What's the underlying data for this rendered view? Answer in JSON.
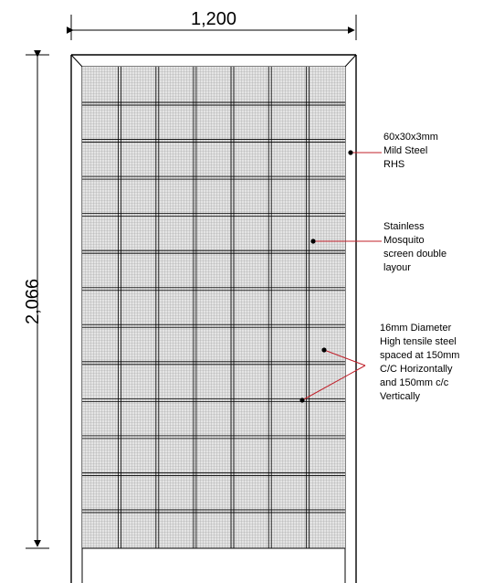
{
  "dimensions": {
    "width_label": "1,200",
    "height_label": "2,066"
  },
  "callouts": {
    "frame": [
      "60x30x3mm",
      "Mild Steel",
      "RHS"
    ],
    "mesh": [
      "Stainless",
      "Mosquito",
      "screen double",
      "layour"
    ],
    "bars": [
      "16mm Diameter",
      "High tensile steel",
      "spaced at 150mm",
      "C/C Horizontally",
      "and 150mm c/c",
      "Vertically"
    ]
  },
  "colors": {
    "leader": "#c0202a",
    "line": "#000000",
    "mesh": "#9a9a9a",
    "mesh_fill": "#e2e2e2"
  }
}
